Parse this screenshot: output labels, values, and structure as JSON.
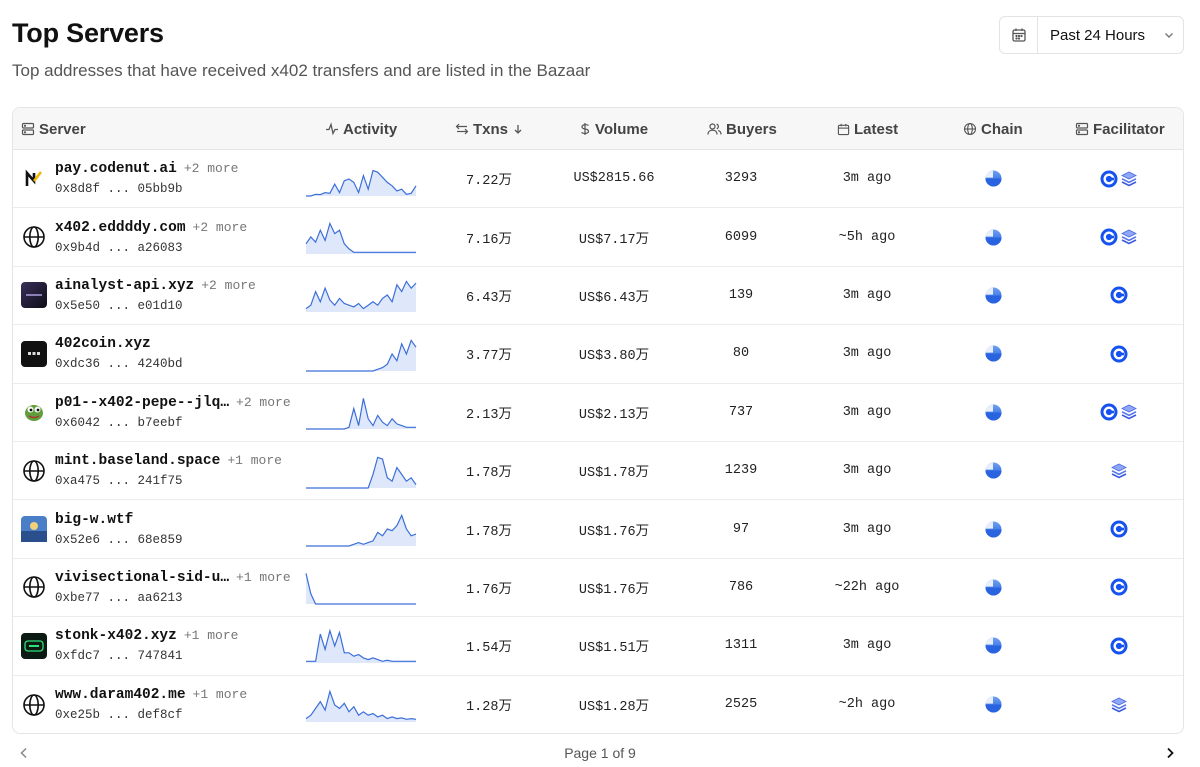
{
  "header": {
    "title": "Top Servers",
    "subtitle": "Top addresses that have received x402 transfers and are listed in the Bazaar"
  },
  "range_picker": {
    "icon": "calendar-icon",
    "label": "Past 24 Hours",
    "chevron_icon": "chevron-down-icon"
  },
  "colors": {
    "accent": "#2f6fe4",
    "spark_line": "#3b6fd8",
    "spark_fill": "#dfe8fb",
    "header_bg": "#f7f7f7",
    "border": "#e5e5e5"
  },
  "columns": {
    "server": "Server",
    "activity": "Activity",
    "txns": "Txns",
    "volume": "Volume",
    "buyers": "Buyers",
    "latest": "Latest",
    "chain": "Chain",
    "facilitator": "Facilitator"
  },
  "rows": [
    {
      "name": "pay.codenut.ai",
      "more": "+2 more",
      "addr_start": "0x8d8f",
      "addr_end": "05bb9b",
      "logo": "codenut-logo",
      "txns": "7.22万",
      "volume": "US$2815.66",
      "buyers": "3293",
      "latest": "3m ago",
      "facilitators": [
        "coinbase",
        "layers"
      ],
      "activity": [
        0,
        0,
        0.05,
        0.04,
        0.1,
        0.08,
        0.35,
        0.1,
        0.45,
        0.5,
        0.4,
        0.1,
        0.6,
        0.2,
        0.75,
        0.7,
        0.55,
        0.4,
        0.3,
        0.15,
        0.2,
        0.05,
        0.08,
        0.3
      ]
    },
    {
      "name": "x402.eddddy.com",
      "more": "+2 more",
      "addr_start": "0x9b4d",
      "addr_end": "a26083",
      "logo": "globe-icon",
      "txns": "7.16万",
      "volume": "US$7.17万",
      "buyers": "6099",
      "latest": "~5h ago",
      "facilitators": [
        "coinbase",
        "layers"
      ],
      "activity": [
        0.3,
        0.5,
        0.35,
        0.7,
        0.4,
        0.9,
        0.6,
        0.7,
        0.3,
        0.15,
        0.05,
        0.05,
        0.05,
        0.05,
        0.05,
        0.05,
        0.05,
        0.05,
        0.05,
        0.05,
        0.05,
        0.05,
        0.05,
        0.05
      ]
    },
    {
      "name": "ainalyst-api.xyz",
      "more": "+2 more",
      "addr_start": "0x5e50",
      "addr_end": "e01d10",
      "logo": "ainalyst-logo",
      "txns": "6.43万",
      "volume": "US$6.43万",
      "buyers": "139",
      "latest": "3m ago",
      "facilitators": [
        "coinbase"
      ],
      "activity": [
        0.1,
        0.2,
        0.6,
        0.3,
        0.7,
        0.35,
        0.2,
        0.4,
        0.25,
        0.2,
        0.15,
        0.25,
        0.1,
        0.2,
        0.3,
        0.2,
        0.4,
        0.5,
        0.3,
        0.8,
        0.6,
        0.9,
        0.7,
        0.85
      ]
    },
    {
      "name": "402coin.xyz",
      "more": "",
      "addr_start": "0xdc36",
      "addr_end": "4240bd",
      "logo": "402coin-logo",
      "txns": "3.77万",
      "volume": "US$3.80万",
      "buyers": "80",
      "latest": "3m ago",
      "facilitators": [
        "coinbase"
      ],
      "activity": [
        0,
        0,
        0,
        0,
        0,
        0,
        0,
        0,
        0,
        0,
        0,
        0,
        0,
        0,
        0,
        0.05,
        0.1,
        0.2,
        0.5,
        0.3,
        0.8,
        0.5,
        0.9,
        0.7
      ]
    },
    {
      "name": "p01--x402-pepe--jlq…",
      "more": "+2 more",
      "addr_start": "0x6042",
      "addr_end": "b7eebf",
      "logo": "pepe-logo",
      "txns": "2.13万",
      "volume": "US$2.13万",
      "buyers": "737",
      "latest": "3m ago",
      "facilitators": [
        "coinbase",
        "layers"
      ],
      "activity": [
        0,
        0,
        0,
        0,
        0,
        0,
        0,
        0,
        0,
        0.05,
        0.6,
        0.1,
        0.9,
        0.3,
        0.1,
        0.4,
        0.2,
        0.1,
        0.3,
        0.15,
        0.1,
        0.05,
        0.05,
        0.05
      ]
    },
    {
      "name": "mint.baseland.space",
      "more": "+1 more",
      "addr_start": "0xa475",
      "addr_end": "241f75",
      "logo": "globe-icon",
      "txns": "1.78万",
      "volume": "US$1.78万",
      "buyers": "1239",
      "latest": "3m ago",
      "facilitators": [
        "layers"
      ],
      "activity": [
        0,
        0,
        0,
        0,
        0,
        0,
        0,
        0,
        0,
        0,
        0,
        0,
        0,
        0,
        0.4,
        0.9,
        0.85,
        0.3,
        0.2,
        0.6,
        0.4,
        0.2,
        0.3,
        0.1
      ]
    },
    {
      "name": "big-w.wtf",
      "more": "",
      "addr_start": "0x52e6",
      "addr_end": "68e859",
      "logo": "bigw-logo",
      "txns": "1.78万",
      "volume": "US$1.76万",
      "buyers": "97",
      "latest": "3m ago",
      "facilitators": [
        "coinbase"
      ],
      "activity": [
        0,
        0,
        0,
        0,
        0,
        0,
        0,
        0,
        0,
        0,
        0.05,
        0.1,
        0.05,
        0.1,
        0.15,
        0.4,
        0.3,
        0.5,
        0.45,
        0.6,
        0.9,
        0.5,
        0.3,
        0.35
      ]
    },
    {
      "name": "vivisectional-sid-u…",
      "more": "+1 more",
      "addr_start": "0xbe77",
      "addr_end": "aa6213",
      "logo": "globe-icon",
      "txns": "1.76万",
      "volume": "US$1.76万",
      "buyers": "786",
      "latest": "~22h ago",
      "facilitators": [
        "coinbase"
      ],
      "activity": [
        0.9,
        0.3,
        0,
        0,
        0,
        0,
        0,
        0,
        0,
        0,
        0,
        0,
        0,
        0,
        0,
        0,
        0,
        0,
        0,
        0,
        0,
        0,
        0,
        0
      ]
    },
    {
      "name": "stonk-x402.xyz",
      "more": "+1 more",
      "addr_start": "0xfdc7",
      "addr_end": "747841",
      "logo": "stonk-logo",
      "txns": "1.54万",
      "volume": "US$1.51万",
      "buyers": "1311",
      "latest": "3m ago",
      "facilitators": [
        "coinbase"
      ],
      "activity": [
        0.05,
        0.05,
        0.05,
        0.85,
        0.4,
        0.95,
        0.5,
        0.9,
        0.3,
        0.3,
        0.2,
        0.25,
        0.15,
        0.1,
        0.15,
        0.1,
        0.05,
        0.08,
        0.05,
        0.05,
        0.05,
        0.05,
        0.05,
        0.05
      ]
    },
    {
      "name": "www.daram402.me",
      "more": "+1 more",
      "addr_start": "0xe25b",
      "addr_end": "def8cf",
      "logo": "globe-icon",
      "txns": "1.28万",
      "volume": "US$1.28万",
      "buyers": "2525",
      "latest": "~2h ago",
      "facilitators": [
        "layers"
      ],
      "activity": [
        0.1,
        0.2,
        0.4,
        0.6,
        0.35,
        0.9,
        0.5,
        0.4,
        0.55,
        0.3,
        0.45,
        0.2,
        0.3,
        0.2,
        0.25,
        0.15,
        0.2,
        0.1,
        0.15,
        0.1,
        0.12,
        0.08,
        0.1,
        0.08
      ]
    }
  ],
  "pagination": {
    "text": "Page 1 of 9",
    "prev_icon": "chevron-left-icon",
    "next_icon": "chevron-right-icon"
  }
}
